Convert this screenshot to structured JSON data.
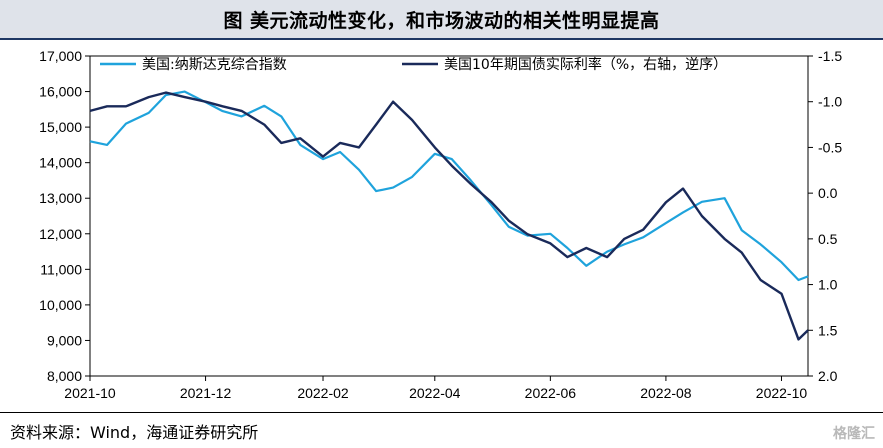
{
  "header": {
    "title": "图 美元流动性变化，和市场波动的相关性明显提高"
  },
  "footer": {
    "source": "资料来源：Wind，海通证券研究所",
    "watermark": "格隆汇"
  },
  "colors": {
    "nasdaq": "#1fa3dc",
    "tips": "#1a2a5a",
    "title_bg": "#dfe3ea",
    "title_rule": "#1f3864"
  },
  "chart_data": {
    "type": "line",
    "title": "美元流动性变化，和市场波动的相关性明显提高",
    "x_ticks": [
      "2021-10",
      "2021-12",
      "2022-02",
      "2022-04",
      "2022-06",
      "2022-08",
      "2022-10"
    ],
    "y_left": {
      "range": [
        8000,
        17000
      ],
      "ticks": [
        "8,000",
        "9,000",
        "10,000",
        "11,000",
        "12,000",
        "13,000",
        "14,000",
        "15,000",
        "16,000",
        "17,000"
      ]
    },
    "y_right": {
      "range": [
        -1.5,
        2.0
      ],
      "inverted": true,
      "ticks": [
        "-1.5",
        "-1.0",
        "-0.5",
        "0.0",
        "0.5",
        "1.0",
        "1.5",
        "2.0"
      ]
    },
    "series": [
      {
        "name": "美国:纳斯达克综合指数",
        "axis": "left",
        "x": [
          "2021-10-01",
          "2021-10-10",
          "2021-10-20",
          "2021-11-01",
          "2021-11-10",
          "2021-11-20",
          "2021-12-01",
          "2021-12-10",
          "2021-12-20",
          "2022-01-01",
          "2022-01-10",
          "2022-01-20",
          "2022-02-01",
          "2022-02-10",
          "2022-02-20",
          "2022-03-01",
          "2022-03-10",
          "2022-03-20",
          "2022-04-01",
          "2022-04-10",
          "2022-04-20",
          "2022-05-01",
          "2022-05-10",
          "2022-05-20",
          "2022-06-01",
          "2022-06-10",
          "2022-06-20",
          "2022-07-01",
          "2022-07-10",
          "2022-07-20",
          "2022-08-01",
          "2022-08-10",
          "2022-08-20",
          "2022-09-01",
          "2022-09-10",
          "2022-09-20",
          "2022-10-01",
          "2022-10-10",
          "2022-10-15"
        ],
        "values": [
          14600,
          14500,
          15100,
          15400,
          15900,
          16000,
          15700,
          15450,
          15300,
          15600,
          15300,
          14500,
          14100,
          14300,
          13800,
          13200,
          13300,
          13600,
          14250,
          14100,
          13500,
          12800,
          12200,
          11950,
          12000,
          11600,
          11100,
          11500,
          11700,
          11900,
          12300,
          12600,
          12900,
          13000,
          12100,
          11700,
          11200,
          10700,
          10800
        ]
      },
      {
        "name": "美国10年期国债实际利率（%，右轴，逆序）",
        "axis": "right",
        "x": [
          "2021-10-01",
          "2021-10-10",
          "2021-10-20",
          "2021-11-01",
          "2021-11-10",
          "2021-11-20",
          "2021-12-01",
          "2021-12-10",
          "2021-12-20",
          "2022-01-01",
          "2022-01-10",
          "2022-01-20",
          "2022-02-01",
          "2022-02-10",
          "2022-02-20",
          "2022-03-01",
          "2022-03-10",
          "2022-03-20",
          "2022-04-01",
          "2022-04-10",
          "2022-04-20",
          "2022-05-01",
          "2022-05-10",
          "2022-05-20",
          "2022-06-01",
          "2022-06-10",
          "2022-06-20",
          "2022-07-01",
          "2022-07-10",
          "2022-07-20",
          "2022-08-01",
          "2022-08-10",
          "2022-08-20",
          "2022-09-01",
          "2022-09-10",
          "2022-09-20",
          "2022-10-01",
          "2022-10-10",
          "2022-10-15"
        ],
        "values": [
          -0.9,
          -0.95,
          -0.95,
          -1.05,
          -1.1,
          -1.05,
          -1.0,
          -0.95,
          -0.9,
          -0.75,
          -0.55,
          -0.6,
          -0.4,
          -0.55,
          -0.5,
          -0.75,
          -1.0,
          -0.8,
          -0.5,
          -0.3,
          -0.1,
          0.1,
          0.3,
          0.45,
          0.55,
          0.7,
          0.6,
          0.7,
          0.5,
          0.4,
          0.1,
          -0.05,
          0.25,
          0.5,
          0.65,
          0.95,
          1.1,
          1.6,
          1.5
        ]
      }
    ]
  }
}
